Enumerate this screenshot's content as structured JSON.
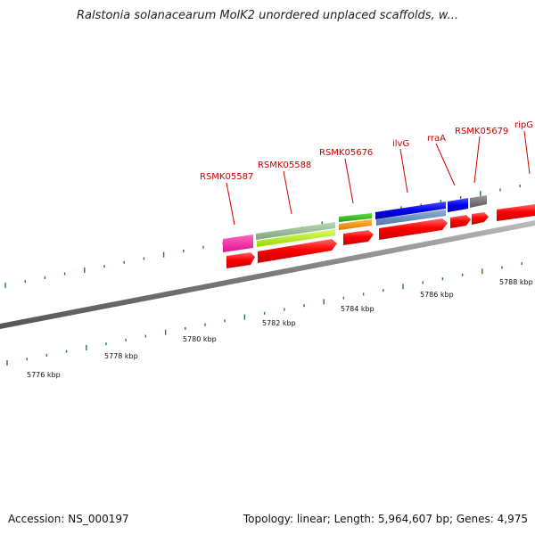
{
  "title": "Ralstonia solanacearum MolK2 unordered unplaced scaffolds, w...",
  "accession": "Accession: NS_000197",
  "summary": "Topology: linear; Length: 5,964,607 bp; Genes: 4,975",
  "ruler_labels": [
    "5776 kbp",
    "5778 kbp",
    "5780 kbp",
    "5782 kbp",
    "5784 kbp",
    "5786 kbp",
    "5788 kbp"
  ],
  "gene_labels": [
    "RSMK05587",
    "RSMK05588",
    "RSMK05676",
    "ilvG",
    "rraA",
    "RSMK05679",
    "ripG"
  ],
  "colors": {
    "label": "#cc0000",
    "tick": "#2a7a2a",
    "backbone": "#808080",
    "cds": "#ff0000"
  }
}
